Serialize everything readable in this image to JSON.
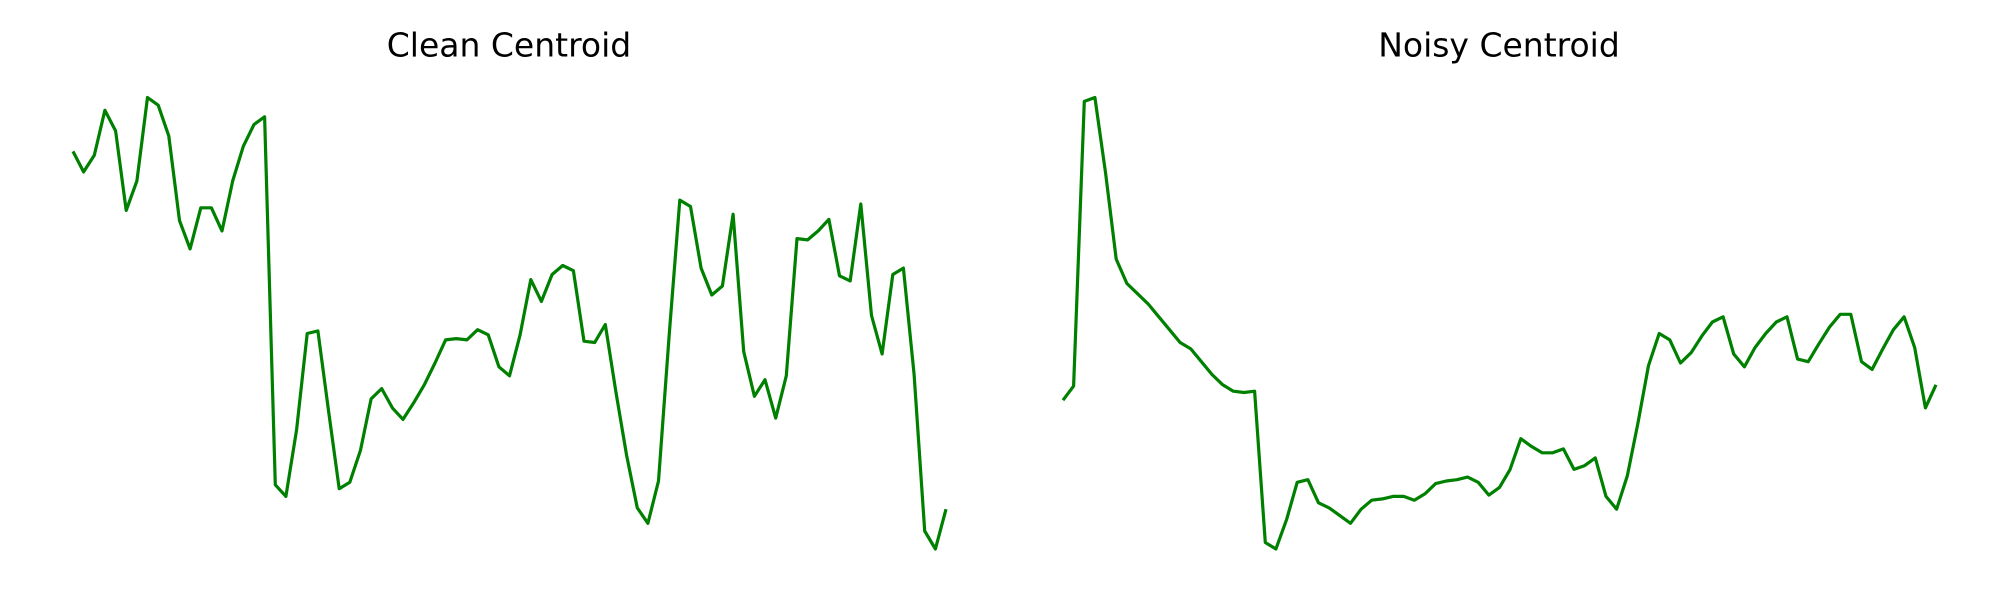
{
  "chart_data": [
    {
      "type": "line",
      "title": "Clean Centroid",
      "color": "#008000",
      "ylim": [
        0,
        400
      ],
      "values": [
        342,
        326,
        339,
        374,
        358,
        296,
        319,
        384,
        378,
        354,
        288,
        266,
        298,
        298,
        280,
        319,
        346,
        363,
        369,
        82,
        73,
        125,
        200,
        202,
        140,
        79,
        84,
        109,
        149,
        157,
        142,
        133,
        146,
        160,
        177,
        195,
        196,
        195,
        203,
        199,
        174,
        167,
        199,
        242,
        225,
        246,
        253,
        249,
        194,
        193,
        207,
        154,
        105,
        64,
        52,
        85,
        199,
        304,
        299,
        251,
        230,
        237,
        293,
        186,
        151,
        164,
        134,
        167,
        274,
        273,
        280,
        289,
        245,
        241,
        301,
        214,
        184,
        246,
        251,
        168,
        46,
        32,
        63
      ]
    },
    {
      "type": "line",
      "title": "Noisy Centroid",
      "color": "#008000",
      "ylim": [
        0,
        400
      ],
      "values": [
        148,
        159,
        381,
        384,
        325,
        258,
        239,
        231,
        223,
        213,
        203,
        193,
        188,
        178,
        168,
        160,
        155,
        154,
        155,
        37,
        32,
        55,
        84,
        86,
        68,
        64,
        58,
        52,
        63,
        70,
        71,
        73,
        73,
        70,
        75,
        83,
        85,
        86,
        88,
        84,
        74,
        80,
        94,
        118,
        112,
        107,
        107,
        110,
        94,
        97,
        103,
        73,
        63,
        89,
        130,
        175,
        200,
        195,
        177,
        185,
        198,
        209,
        213,
        184,
        174,
        189,
        200,
        209,
        213,
        180,
        178,
        192,
        205,
        215,
        215,
        178,
        172,
        188,
        203,
        213,
        189,
        142,
        160
      ]
    }
  ]
}
